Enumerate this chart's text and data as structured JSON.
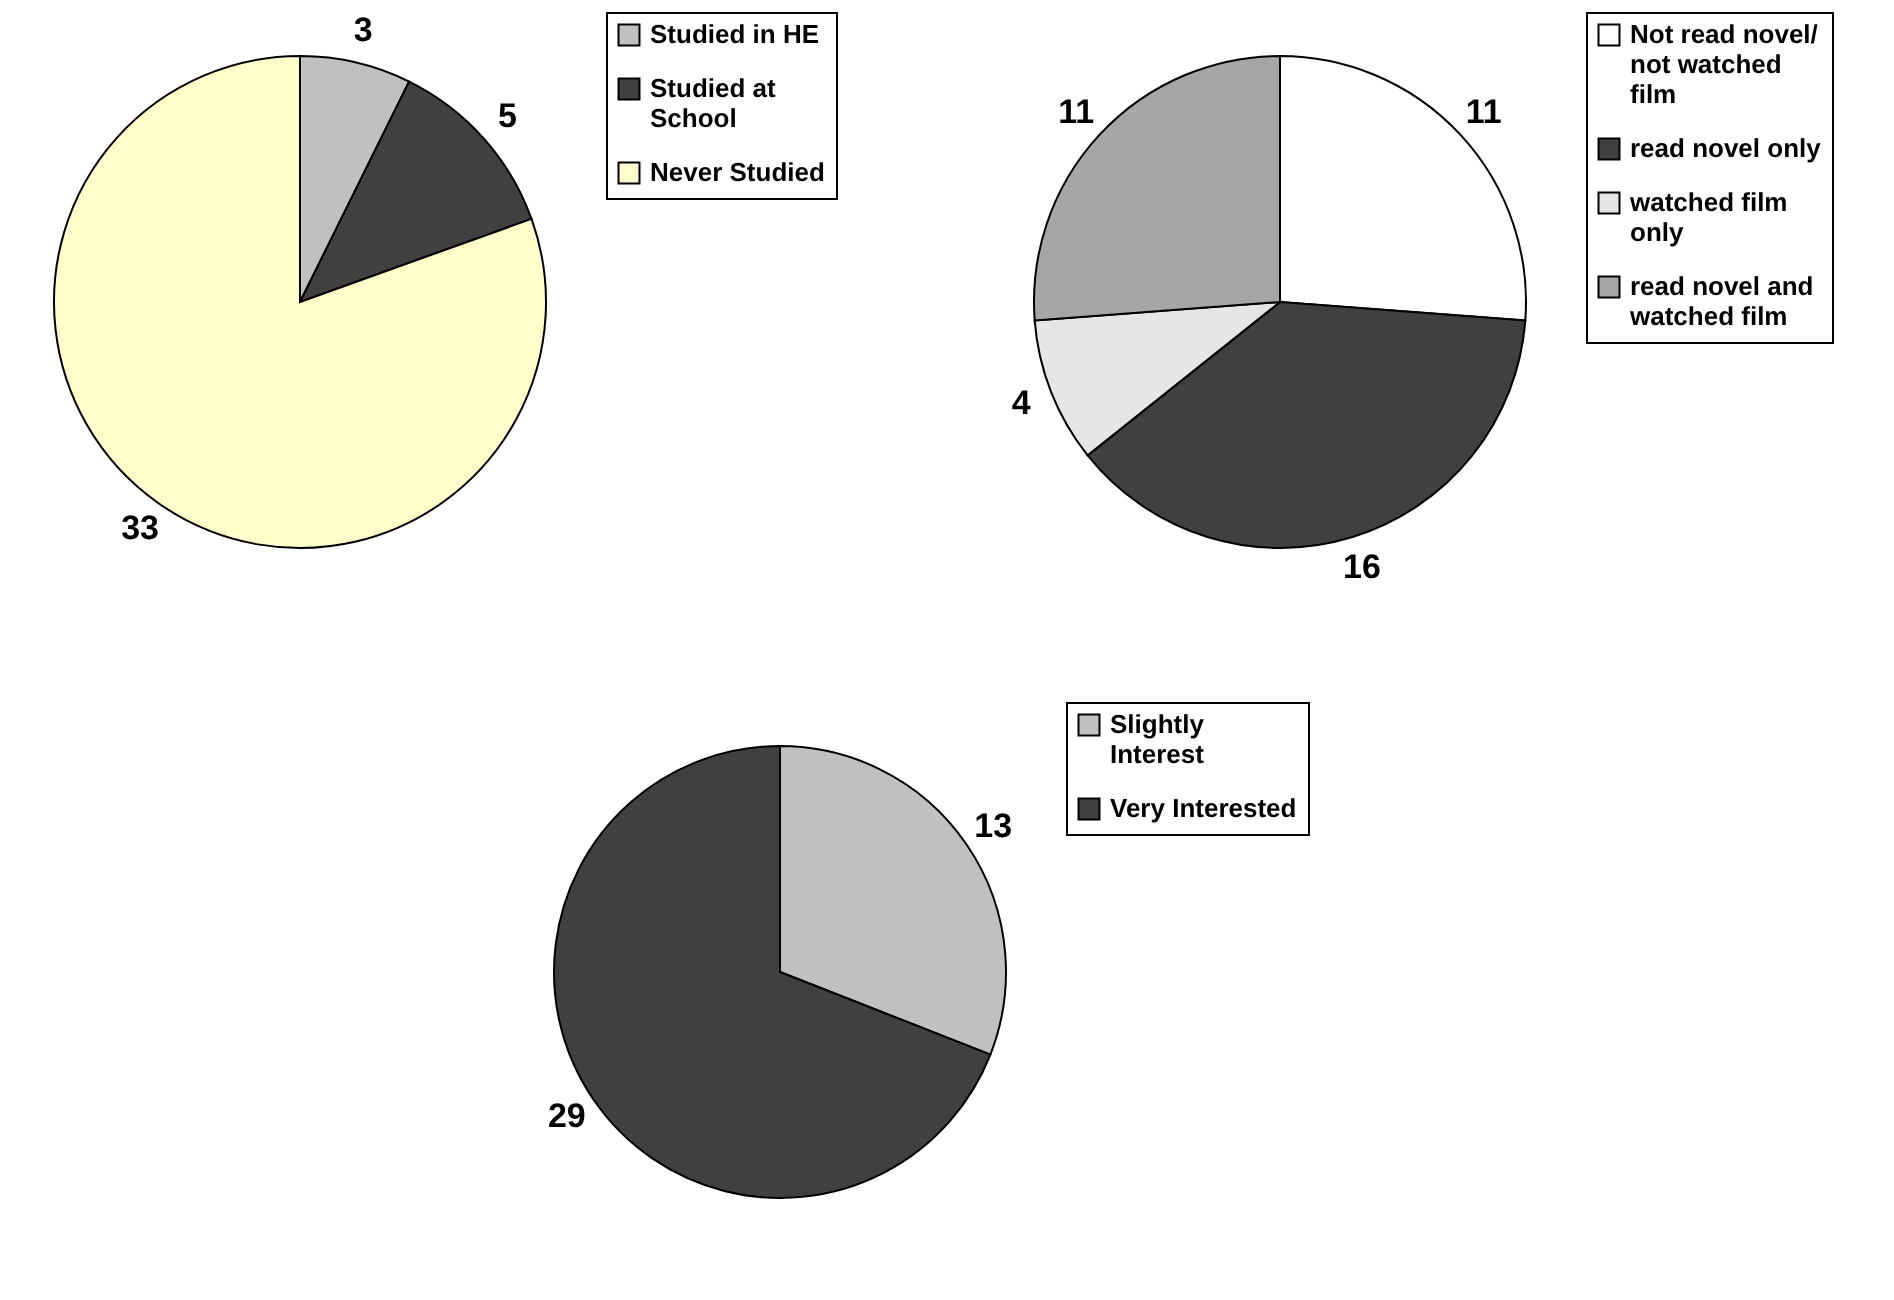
{
  "chart_data": [
    {
      "type": "pie",
      "categories": [
        "Studied in HE",
        "Studied at School",
        "Never Studied"
      ],
      "values": [
        3,
        5,
        33
      ],
      "colors": [
        "#c0c0c0",
        "#404040",
        "#ffffcc"
      ],
      "data_labels": true,
      "legend": "right"
    },
    {
      "type": "pie",
      "categories": [
        "Not read novel/ not watched film",
        "read novel only",
        "watched film only",
        "read novel and watched film"
      ],
      "values": [
        11,
        16,
        4,
        11
      ],
      "colors": [
        "#ffffff",
        "#404040",
        "#e6e6e6",
        "#a6a6a6"
      ],
      "data_labels": true,
      "legend": "right"
    },
    {
      "type": "pie",
      "categories": [
        "Slightly Interest",
        "Very Interested"
      ],
      "values": [
        13,
        29
      ],
      "colors": [
        "#c0c0c0",
        "#404040"
      ],
      "data_labels": true,
      "legend": "right"
    }
  ]
}
